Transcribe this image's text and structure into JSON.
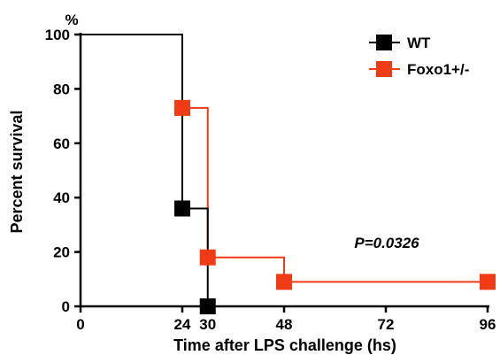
{
  "chart_data": {
    "type": "line",
    "step": true,
    "xlabel": "Time after LPS challenge (hs)",
    "ylabel": "Percent survival",
    "yunit": "%",
    "xlim": [
      0,
      96
    ],
    "ylim": [
      0,
      100
    ],
    "xticks": [
      0,
      24,
      30,
      48,
      72,
      96
    ],
    "yticks": [
      0,
      20,
      40,
      60,
      80,
      100
    ],
    "grid": false,
    "legend_position": "top-right",
    "annotation": "P=0.0326",
    "series": [
      {
        "name": "WT",
        "color": "#000000",
        "x": [
          0,
          24,
          30
        ],
        "y": [
          100,
          36,
          0
        ],
        "markers_x": [
          24,
          30
        ],
        "markers_y": [
          36,
          0
        ]
      },
      {
        "name": "Foxo1+/-",
        "color": "#f03c14",
        "x": [
          0,
          24,
          30,
          48,
          96
        ],
        "y": [
          100,
          73,
          18,
          9,
          9
        ],
        "markers_x": [
          24,
          30,
          48,
          96
        ],
        "markers_y": [
          73,
          18,
          9,
          9
        ]
      }
    ]
  }
}
